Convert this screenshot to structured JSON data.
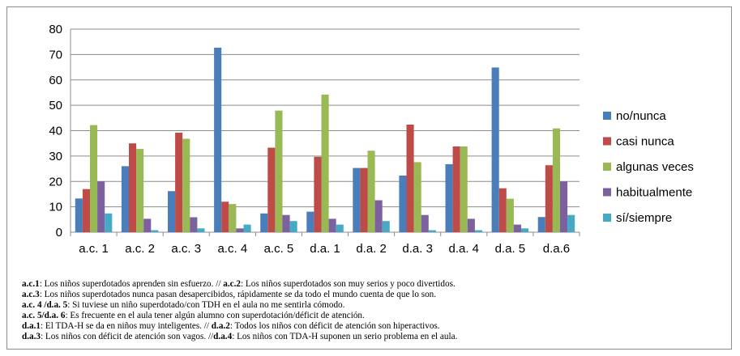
{
  "chart_data": {
    "type": "bar",
    "categories": [
      "a.c. 1",
      "a.c. 2",
      "a.c. 3",
      "a.c. 4",
      "a.c. 5",
      "d.a. 1",
      "d.a. 2",
      "d.a. 3",
      "d.a. 4",
      "d.a. 5",
      "d.a.6"
    ],
    "ylim": [
      0,
      80
    ],
    "yticks": [
      "0",
      "10",
      "20",
      "30",
      "40",
      "50",
      "60",
      "70",
      "80"
    ],
    "grid": true,
    "legend_position": "right",
    "series": [
      {
        "name": "no/nunca",
        "color": "#4a7ebb",
        "values": [
          13.3,
          26,
          16.2,
          72.7,
          7.4,
          8.1,
          25.3,
          22.3,
          26.8,
          64.9,
          6
        ]
      },
      {
        "name": "casi nunca",
        "color": "#be4b48",
        "values": [
          17,
          35,
          39.2,
          12,
          33.3,
          29.7,
          25.3,
          42.4,
          33.8,
          17.3,
          26.4
        ]
      },
      {
        "name": "algunas veces",
        "color": "#98b954",
        "values": [
          42.2,
          32.8,
          36.8,
          11.1,
          47.9,
          54.2,
          32.1,
          27.6,
          33.8,
          13.2,
          40.9
        ]
      },
      {
        "name": "habitualmente",
        "color": "#7d60a0",
        "values": [
          20,
          5.3,
          5.9,
          1.5,
          6.8,
          5.3,
          12.6,
          6.8,
          5.3,
          3,
          20
        ]
      },
      {
        "name": "sí/siempre",
        "color": "#46aac5",
        "values": [
          7.4,
          0.8,
          1.5,
          3,
          4.4,
          3,
          4.4,
          0.8,
          0.8,
          1.5,
          6.8
        ]
      }
    ]
  },
  "caption": [
    {
      "k1": "a.c.1",
      "t1": ": Los niños superdotados aprenden sin esfuerzo. // ",
      "k2": "a.c.2",
      "t2": ": Los niños superdotados son muy serios y poco divertidos."
    },
    {
      "k1": "a.c.3",
      "t1": ": Los niños superdotados nunca pasan desapercibidos, rápidamente se da todo el mundo cuenta de que lo son.",
      "k2": "",
      "t2": ""
    },
    {
      "k1": "a.c. 4 /d.a. 5",
      "t1": ": Si tuviese un niño superdotado/con TDH en el aula no me sentirla cómodo.",
      "k2": "",
      "t2": ""
    },
    {
      "k1": "a.c. 5/d.a. 6",
      "t1": ": Es frecuente en el aula tener algún alumno con superdotación/déficit de atención.",
      "k2": "",
      "t2": ""
    },
    {
      "k1": "d.a.1",
      "t1": ": El TDA-H se da en niños muy inteligentes. // ",
      "k2": "d.a.2",
      "t2": ": Todos los niños con déficit de atención son hiperactivos."
    },
    {
      "k1": "d.a.3",
      "t1": ": Los niños con déficit de atención son vagos. //",
      "k2": "d.a.4",
      "t2": ": Los niños con TDA-H suponen un serio problema en el aula."
    }
  ]
}
